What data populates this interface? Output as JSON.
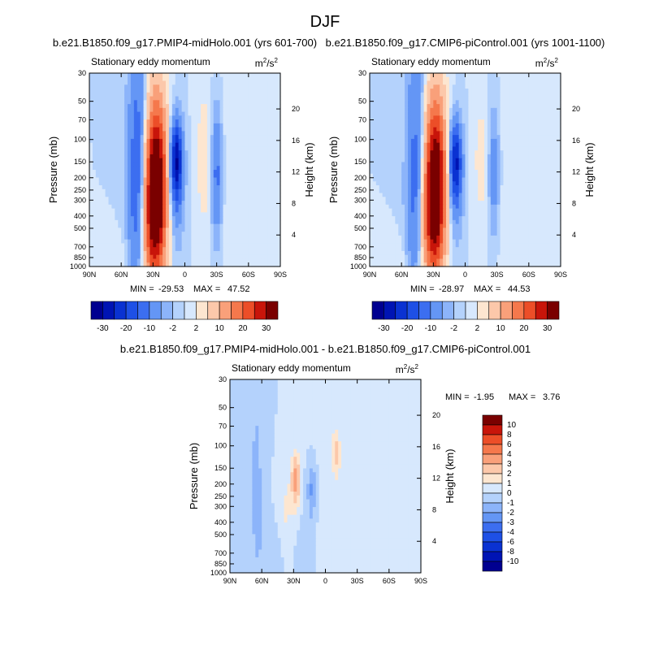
{
  "figure_title": "DJF",
  "chart_data": [
    {
      "type": "heatmap",
      "title": "b.e21.B1850.f09_g17.PMIP4-midHolo.001 (yrs 601-700)",
      "left_string": "Stationary eddy momentum",
      "units_base": "m",
      "units_exp": "2",
      "units_sep": "/s",
      "ylabel": "Pressure (mb)",
      "ylabel_right": "Height (km)",
      "x_ticks": [
        "90N",
        "60N",
        "30N",
        "0",
        "30S",
        "60S",
        "90S"
      ],
      "y_ticks": [
        "30",
        "50",
        "70",
        "100",
        "150",
        "200",
        "250",
        "300",
        "400",
        "500",
        "700",
        "850",
        "1000"
      ],
      "height_ticks": [
        "20",
        "16",
        "12",
        "8",
        "4"
      ],
      "min_label": "MIN =",
      "min_value": "-29.53",
      "max_label": "MAX =",
      "max_value": "47.52",
      "colorbar_ticks": [
        "-30",
        "-20",
        "-10",
        "-2",
        "2",
        "10",
        "20",
        "30"
      ],
      "features": [
        {
          "lat": 45,
          "p": 120,
          "value": -12,
          "slat": 6,
          "slp": 1.6
        },
        {
          "lat": 45,
          "p": 400,
          "value": -6,
          "slat": 6,
          "slp": 0.9
        },
        {
          "lat": 27,
          "p": 230,
          "value": 40,
          "slat": 7,
          "slp": 1.1
        },
        {
          "lat": 33,
          "p": 500,
          "value": 10,
          "slat": 8,
          "slp": 0.8
        },
        {
          "lat": 8,
          "p": 145,
          "value": -28,
          "slat": 4,
          "slp": 0.5
        },
        {
          "lat": 8,
          "p": 300,
          "value": -6,
          "slat": 5,
          "slp": 0.7
        },
        {
          "lat": -18,
          "p": 140,
          "value": 4,
          "slat": 5,
          "slp": 0.8
        },
        {
          "lat": -30,
          "p": 190,
          "value": -12,
          "slat": 3.5,
          "slp": 0.8
        },
        {
          "lat": -55,
          "p": 300,
          "value": 1.5,
          "slat": 18,
          "slp": 2.0
        },
        {
          "lat": 62,
          "p": 900,
          "value": 2,
          "slat": 6,
          "slp": 0.3
        }
      ]
    },
    {
      "type": "heatmap",
      "title": "b.e21.B1850.f09_g17.CMIP6-piControl.001 (yrs 1001-1100)",
      "left_string": "Stationary eddy momentum",
      "units_base": "m",
      "units_exp": "2",
      "units_sep": "/s",
      "ylabel": "Pressure (mb)",
      "ylabel_right": "Height (km)",
      "x_ticks": [
        "90N",
        "60N",
        "30N",
        "0",
        "30S",
        "60S",
        "90S"
      ],
      "y_ticks": [
        "30",
        "50",
        "70",
        "100",
        "150",
        "200",
        "250",
        "300",
        "400",
        "500",
        "700",
        "850",
        "1000"
      ],
      "height_ticks": [
        "20",
        "16",
        "12",
        "8",
        "4"
      ],
      "min_label": "MIN =",
      "min_value": "-28.97",
      "max_label": "MAX =",
      "max_value": "44.53",
      "colorbar_ticks": [
        "-30",
        "-20",
        "-10",
        "-2",
        "2",
        "10",
        "20",
        "30"
      ],
      "features": [
        {
          "lat": 47,
          "p": 120,
          "value": -10,
          "slat": 6,
          "slp": 1.6
        },
        {
          "lat": 47,
          "p": 400,
          "value": -5,
          "slat": 6,
          "slp": 0.9
        },
        {
          "lat": 28,
          "p": 220,
          "value": 38,
          "slat": 7,
          "slp": 1.1
        },
        {
          "lat": 34,
          "p": 500,
          "value": 9,
          "slat": 8,
          "slp": 0.8
        },
        {
          "lat": 9,
          "p": 150,
          "value": -25,
          "slat": 4,
          "slp": 0.5
        },
        {
          "lat": 9,
          "p": 300,
          "value": -5,
          "slat": 5,
          "slp": 0.7
        },
        {
          "lat": -15,
          "p": 145,
          "value": 3,
          "slat": 5,
          "slp": 0.8
        },
        {
          "lat": -27,
          "p": 180,
          "value": -8,
          "slat": 3.5,
          "slp": 0.8
        },
        {
          "lat": -55,
          "p": 300,
          "value": 1.5,
          "slat": 18,
          "slp": 2.0
        },
        {
          "lat": 62,
          "p": 900,
          "value": 2,
          "slat": 6,
          "slp": 0.3
        }
      ]
    },
    {
      "type": "heatmap",
      "title": "b.e21.B1850.f09_g17.PMIP4-midHolo.001 - b.e21.B1850.f09_g17.CMIP6-piControl.001",
      "left_string": "Stationary eddy momentum",
      "units_base": "m",
      "units_exp": "2",
      "units_sep": "/s",
      "ylabel": "Pressure (mb)",
      "ylabel_right": "Height (km)",
      "x_ticks": [
        "90N",
        "60N",
        "30N",
        "0",
        "30S",
        "60S",
        "90S"
      ],
      "y_ticks": [
        "30",
        "50",
        "70",
        "100",
        "150",
        "200",
        "250",
        "300",
        "400",
        "500",
        "700",
        "850",
        "1000"
      ],
      "height_ticks": [
        "20",
        "16",
        "12",
        "8",
        "4"
      ],
      "min_label": "MIN =",
      "min_value": "-1.95",
      "max_label": "MAX =",
      "max_value": "3.76",
      "colorbar_ticks": [
        "10",
        "8",
        "6",
        "4",
        "3",
        "2",
        "1",
        "0",
        "-1",
        "-2",
        "-3",
        "-4",
        "-6",
        "-8",
        "-10"
      ],
      "features": [
        {
          "lat": 65,
          "p": 200,
          "value": -1.2,
          "slat": 6,
          "slp": 1.8
        },
        {
          "lat": 28,
          "p": 185,
          "value": 3.5,
          "slat": 3,
          "slp": 0.35
        },
        {
          "lat": 38,
          "p": 350,
          "value": 1.2,
          "slat": 6,
          "slp": 0.6
        },
        {
          "lat": 13,
          "p": 200,
          "value": -1.6,
          "slat": 3,
          "slp": 0.3
        },
        {
          "lat": 13,
          "p": 300,
          "value": -1.0,
          "slat": 3,
          "slp": 0.4
        },
        {
          "lat": -10,
          "p": 115,
          "value": 2.2,
          "slat": 2.5,
          "slp": 0.3
        },
        {
          "lat": 48,
          "p": 700,
          "value": -0.8,
          "slat": 8,
          "slp": 0.5
        },
        {
          "lat": -30,
          "p": 400,
          "value": 0.6,
          "slat": 25,
          "slp": 2.0
        },
        {
          "lat": 20,
          "p": 700,
          "value": -0.6,
          "slat": 6,
          "slp": 0.5
        }
      ]
    }
  ]
}
